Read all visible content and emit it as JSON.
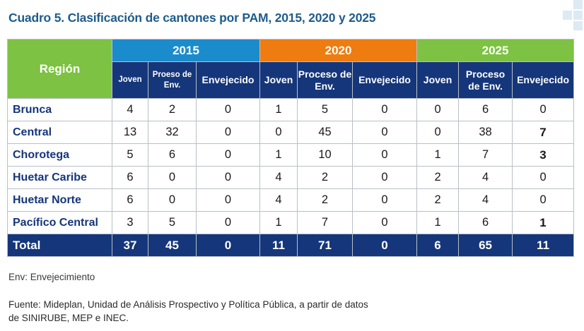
{
  "title": "Cuadro 5. Clasificación de cantones por PAM, 2015, 2020 y 2025",
  "table": {
    "region_header": "Región",
    "years": [
      {
        "label": "2015",
        "color": "#1b8ccb",
        "sub": [
          "Joven",
          "Proeso de Env.",
          "Envejecido"
        ]
      },
      {
        "label": "2020",
        "color": "#ef7c10",
        "sub": [
          "Joven",
          "Proceso de Env.",
          "Envejecido"
        ]
      },
      {
        "label": "2025",
        "color": "#7dc243",
        "sub": [
          "Joven",
          "Proceso de Env.",
          "Envejecido"
        ]
      }
    ],
    "rows": [
      {
        "region": "Brunca",
        "values": [
          "4",
          "2",
          "0",
          "1",
          "5",
          "0",
          "0",
          "6",
          "0"
        ]
      },
      {
        "region": "Central",
        "values": [
          "13",
          "32",
          "0",
          "0",
          "45",
          "0",
          "0",
          "38",
          "7"
        ]
      },
      {
        "region": "Chorotega",
        "values": [
          "5",
          "6",
          "0",
          "1",
          "10",
          "0",
          "1",
          "7",
          "3"
        ]
      },
      {
        "region": "Huetar Caribe",
        "values": [
          "6",
          "0",
          "0",
          "4",
          "2",
          "0",
          "2",
          "4",
          "0"
        ]
      },
      {
        "region": "Huetar Norte",
        "values": [
          "6",
          "0",
          "0",
          "4",
          "2",
          "0",
          "2",
          "4",
          "0"
        ]
      },
      {
        "region": "Pacífico Central",
        "values": [
          "3",
          "5",
          "0",
          "1",
          "7",
          "0",
          "1",
          "6",
          "1"
        ]
      }
    ],
    "total": {
      "label": "Total",
      "values": [
        "37",
        "45",
        "0",
        "11",
        "71",
        "0",
        "6",
        "65",
        "11"
      ]
    },
    "header_dark_color": "#15367a"
  },
  "note": "Env: Envejecimiento",
  "source_line1": "Fuente: Mideplan, Unidad de Análisis Prospectivo y Política Pública, a partir de datos",
  "source_line2": "de SINIRUBE, MEP e INEC."
}
